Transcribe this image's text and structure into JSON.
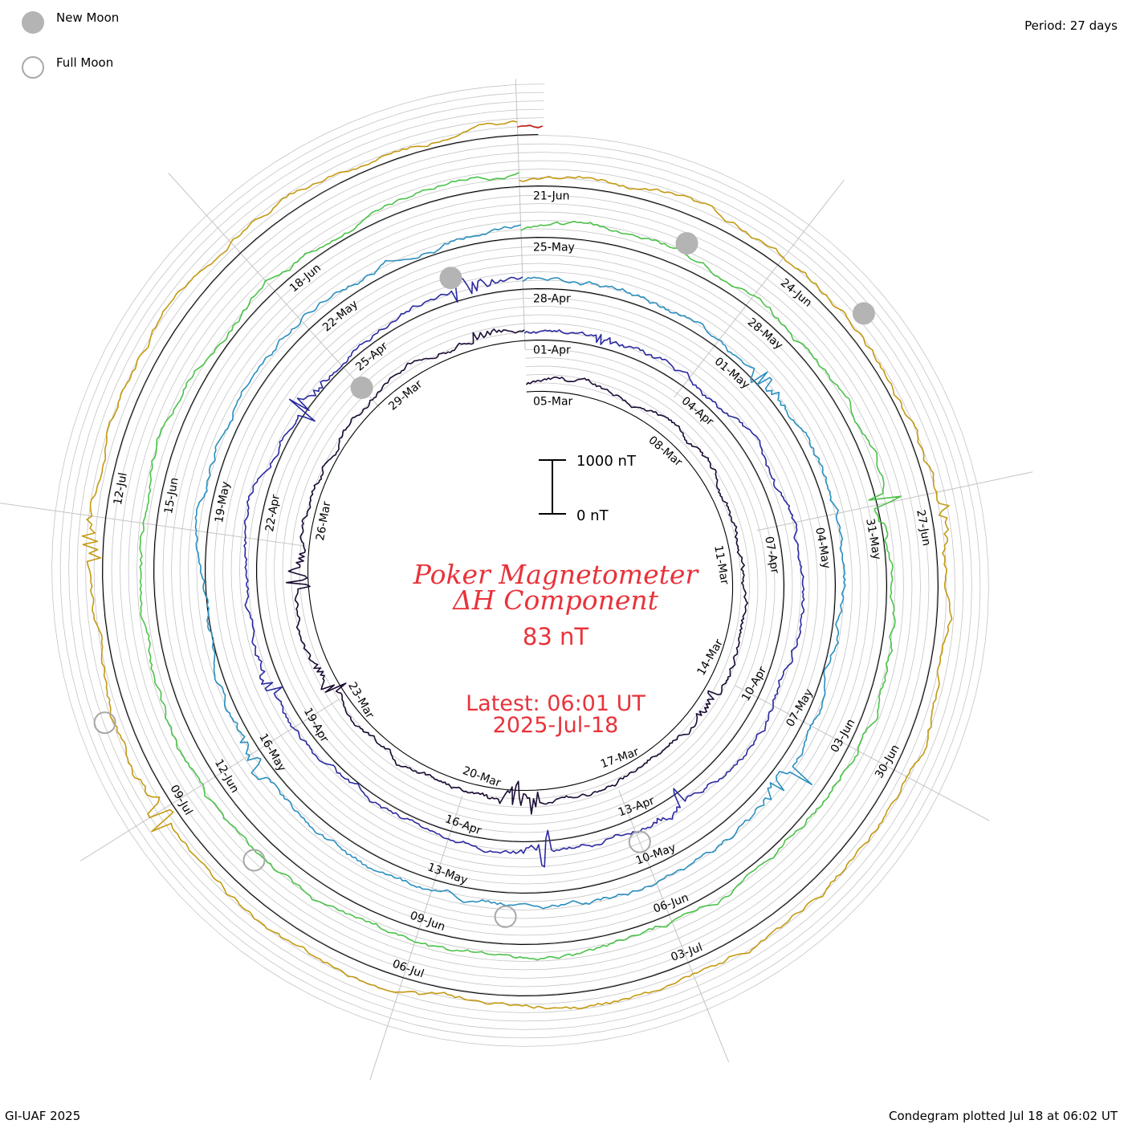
{
  "header": {
    "legend": [
      {
        "label": "New Moon",
        "symbol": "filled-circle"
      },
      {
        "label": "Full Moon",
        "symbol": "open-circle"
      }
    ],
    "period": "Period: 27 days"
  },
  "footer": {
    "left": "GI-UAF 2025",
    "right": "Condegram plotted Jul 18 at 06:02 UT"
  },
  "chart_data": {
    "type": "line",
    "title": "Poker Magnetometer",
    "subtitle": "ΔH Component",
    "current_value": "83 nT",
    "latest_label": "Latest: 06:01 UT",
    "latest_date": "2025-Jul-18",
    "scale": {
      "top_label": "1000 nT",
      "bottom_label": "0 nT",
      "nT": 1000
    },
    "period_days": 27,
    "series_start": "2025-03-05",
    "series_end": "2025-07-18T06:01",
    "grid": true,
    "colors": {
      "moon_fill": "#b4b4b4",
      "moon_edge": "#a8a8a8",
      "title": "#e8333b",
      "grid": "#c4c4c4",
      "baseline": "#000000"
    },
    "series": [
      {
        "name": "",
        "color": "#1a0a33",
        "start": "05-Mar",
        "date_labels": [
          "05-Mar",
          "08-Mar",
          "11-Mar",
          "14-Mar",
          "17-Mar",
          "20-Mar",
          "23-Mar",
          "26-Mar",
          "29-Mar"
        ]
      },
      {
        "name": "",
        "color": "#2b2aa0",
        "start": "01-Apr",
        "date_labels": [
          "01-Apr",
          "04-Apr",
          "07-Apr",
          "10-Apr",
          "13-Apr",
          "16-Apr",
          "19-Apr",
          "22-Apr",
          "25-Apr"
        ]
      },
      {
        "name": "",
        "color": "#2a8fbf",
        "start": "28-Apr",
        "date_labels": [
          "28-Apr",
          "01-May",
          "04-May",
          "07-May",
          "10-May",
          "13-May",
          "16-May",
          "19-May",
          "22-May"
        ]
      },
      {
        "name": "",
        "color": "#4cc24a",
        "start": "25-May",
        "date_labels": [
          "25-May",
          "28-May",
          "31-May",
          "03-Jun",
          "06-Jun",
          "09-Jun",
          "12-Jun",
          "15-Jun",
          "18-Jun"
        ]
      },
      {
        "name": "",
        "color": "#c49a12",
        "start": "21-Jun",
        "date_labels": [
          "21-Jun",
          "24-Jun",
          "27-Jun",
          "30-Jun",
          "03-Jul",
          "06-Jul",
          "09-Jul",
          "12-Jul"
        ]
      },
      {
        "name": "",
        "color": "#c41a12",
        "start": "15-Jul",
        "date_labels": []
      }
    ],
    "new_moons": [
      "2025-03-29",
      "2025-04-27",
      "2025-05-27",
      "2025-06-25"
    ],
    "full_moons": [
      "2025-04-13",
      "2025-05-12",
      "2025-06-11",
      "2025-07-10"
    ]
  }
}
